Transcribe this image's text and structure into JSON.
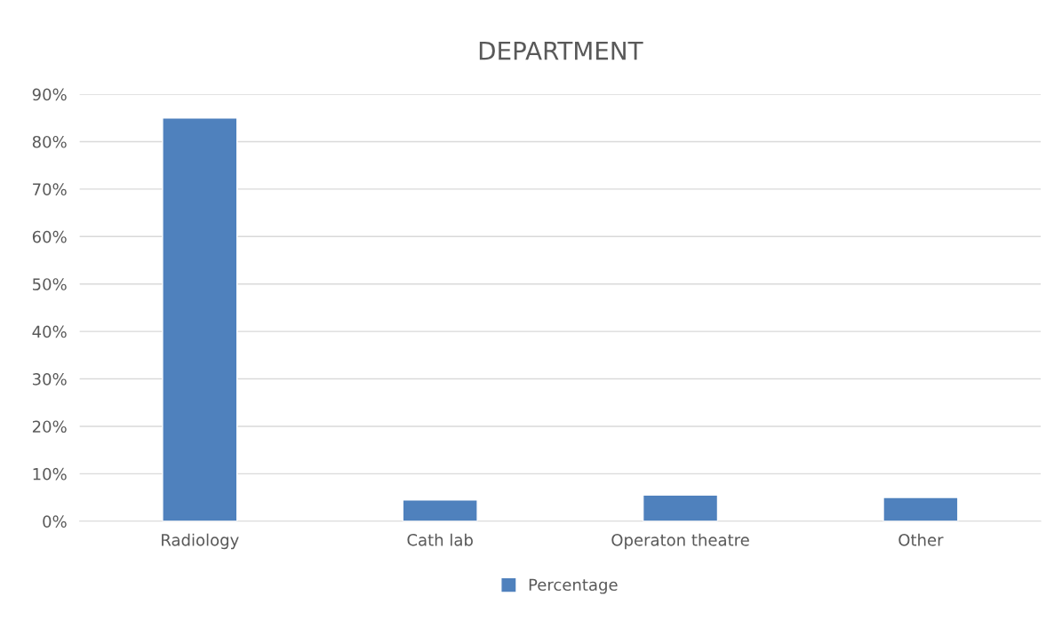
{
  "chart_data": {
    "type": "bar",
    "title": "DEPARTMENT",
    "categories": [
      "Radiology",
      "Cath lab",
      "Operaton theatre",
      "Other"
    ],
    "series": [
      {
        "name": "Percentage",
        "color": "#4f81bd",
        "values": [
          85,
          4.5,
          5.5,
          5
        ]
      }
    ],
    "ylim": [
      0,
      90
    ],
    "yticks": [
      {
        "value": 0,
        "label": "0%"
      },
      {
        "value": 10,
        "label": "10%"
      },
      {
        "value": 20,
        "label": "20%"
      },
      {
        "value": 30,
        "label": "30%"
      },
      {
        "value": 40,
        "label": "40%"
      },
      {
        "value": 50,
        "label": "50%"
      },
      {
        "value": 60,
        "label": "60%"
      },
      {
        "value": 70,
        "label": "70%"
      },
      {
        "value": 80,
        "label": "80%"
      },
      {
        "value": 90,
        "label": "90%"
      }
    ],
    "grid": "y",
    "legend": "bottom"
  }
}
